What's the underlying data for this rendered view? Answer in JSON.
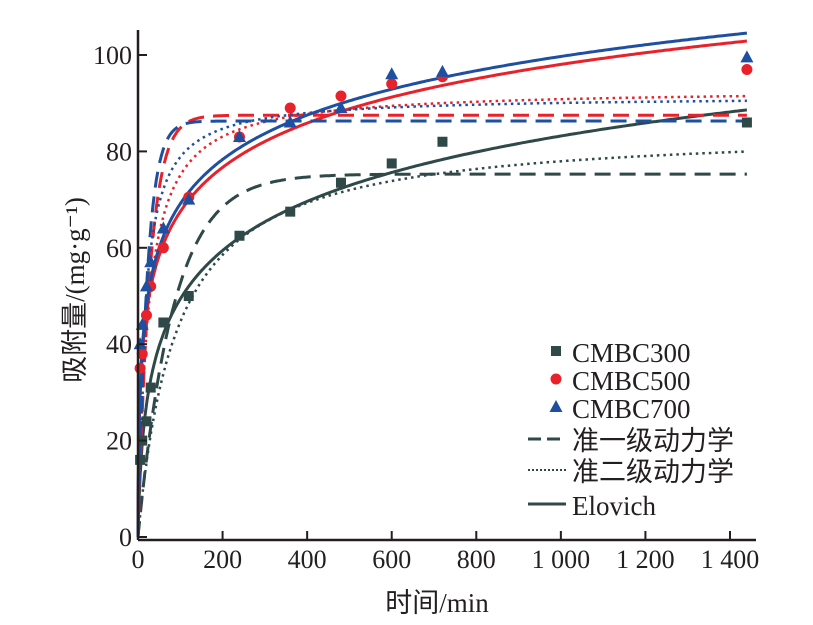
{
  "chart_data": {
    "type": "scatter",
    "xlabel": "时间/min",
    "ylabel": "吸附量/(mg·g⁻¹)",
    "xlim": [
      0,
      1450
    ],
    "ylim": [
      0,
      105
    ],
    "xticks": [
      0,
      200,
      400,
      600,
      800,
      1000,
      1200,
      1400
    ],
    "xtick_labels": [
      "0",
      "200",
      "400",
      "600",
      "800",
      "1 000",
      "1 200",
      "1 400"
    ],
    "yticks": [
      0,
      20,
      40,
      60,
      80,
      100
    ],
    "ytick_labels": [
      "0",
      "20",
      "40",
      "60",
      "80",
      "100"
    ],
    "grid": false,
    "legend_position": "bottom-right",
    "series": [
      {
        "name": "CMBC300",
        "color": "#2f4848",
        "marker": "square",
        "x": [
          5,
          10,
          20,
          30,
          60,
          120,
          240,
          360,
          480,
          600,
          720,
          1440
        ],
        "y": [
          16,
          20,
          24,
          31,
          44.5,
          50,
          62.5,
          67.5,
          73.5,
          77.5,
          82,
          86
        ],
        "pfo": {
          "qe": 75.3,
          "k": 0.012
        },
        "pso": {
          "qe": 85,
          "k": 0.00013
        },
        "elovich": {
          "inv_b": 14.9,
          "ab": 0.265
        }
      },
      {
        "name": "CMBC500",
        "color": "#e8212a",
        "marker": "circle",
        "x": [
          5,
          10,
          20,
          30,
          60,
          120,
          240,
          360,
          480,
          600,
          720,
          1440
        ],
        "y": [
          35,
          38,
          46,
          52,
          60,
          70.5,
          83,
          89,
          91.5,
          94,
          95.5,
          97
        ],
        "pfo": {
          "qe": 87.5,
          "k": 0.035
        },
        "pso": {
          "qe": 93,
          "k": 0.00045
        },
        "elovich": {
          "inv_b": 13.3,
          "ab": 1.59
        }
      },
      {
        "name": "CMBC700",
        "color": "#1e4fa0",
        "marker": "triangle",
        "x": [
          5,
          10,
          20,
          30,
          60,
          120,
          240,
          360,
          480,
          600,
          720,
          1440
        ],
        "y": [
          40,
          44,
          52,
          57,
          64,
          70,
          83,
          86,
          89,
          96,
          96.5,
          99.5
        ],
        "pfo": {
          "qe": 86.3,
          "k": 0.045
        },
        "pso": {
          "qe": 91.5,
          "k": 0.00068
        },
        "elovich": {
          "inv_b": 13.3,
          "ab": 1.8
        }
      }
    ],
    "legend_models": [
      {
        "name": "准一级动力学",
        "style": "dashed"
      },
      {
        "name": "准二级动力学",
        "style": "dotted"
      },
      {
        "name": "Elovich",
        "style": "solid"
      }
    ]
  }
}
